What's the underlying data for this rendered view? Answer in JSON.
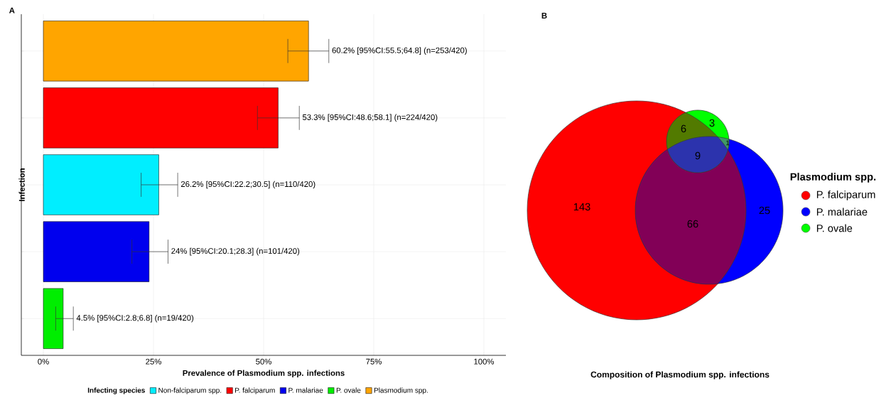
{
  "chart_data": [
    {
      "type": "bar",
      "orientation": "horizontal",
      "xlabel": "Prevalence of Plasmodium spp. infections",
      "ylabel": "Infection",
      "legend_title": "Infecting species",
      "legend": "bottom",
      "grid": true,
      "categories": [
        null,
        null,
        null,
        null,
        null
      ],
      "xlim": [
        -5,
        105
      ],
      "xticks": [
        {
          "value": 0,
          "label": "0%"
        },
        {
          "value": 25,
          "label": "25%"
        },
        {
          "value": 50,
          "label": "50%"
        },
        {
          "value": 75,
          "label": "75%"
        },
        {
          "value": 100,
          "label": "100%"
        }
      ],
      "series": [
        {
          "name": "Non-falciparum spp.",
          "color": "#00eeff",
          "values": [
            null,
            null,
            26.2,
            null,
            null
          ],
          "errors": [
            null,
            null,
            [
              22.2,
              30.5
            ],
            null,
            null
          ],
          "value_labels": [
            null,
            null,
            "26.2% [95%CI:22.2;30.5] (n=110/420)",
            null,
            null
          ]
        },
        {
          "name": "P. falciparum",
          "color": "#ff0000",
          "values": [
            null,
            53.3,
            null,
            null,
            null
          ],
          "errors": [
            null,
            [
              48.6,
              58.1
            ],
            null,
            null,
            null
          ],
          "value_labels": [
            null,
            "53.3% [95%CI:48.6;58.1] (n=224/420)",
            null,
            null,
            null
          ]
        },
        {
          "name": "P. malariae",
          "color": "#0000ee",
          "values": [
            null,
            null,
            null,
            24,
            null
          ],
          "errors": [
            null,
            null,
            null,
            [
              20.1,
              28.3
            ],
            null
          ],
          "value_labels": [
            null,
            null,
            null,
            "24% [95%CI:20.1;28.3] (n=101/420)",
            null
          ]
        },
        {
          "name": "P. ovale",
          "color": "#00ee00",
          "values": [
            null,
            null,
            null,
            null,
            4.5
          ],
          "errors": [
            null,
            null,
            null,
            null,
            [
              2.8,
              6.8
            ]
          ],
          "value_labels": [
            null,
            null,
            null,
            null,
            "4.5% [95%CI:2.8;6.8] (n=19/420)"
          ]
        },
        {
          "name": "Plasmodium spp.",
          "color": "#ffa500",
          "values": [
            60.2,
            null,
            null,
            null,
            null
          ],
          "errors": [
            [
              55.5,
              64.8
            ],
            null,
            null,
            null,
            null
          ],
          "value_labels": [
            "60.2% [95%CI:55.5;64.8] (n=253/420)",
            null,
            null,
            null,
            null
          ]
        }
      ],
      "annotations": [
        "A"
      ]
    },
    {
      "type": "other",
      "title": "Composition of Plasmodium spp. infections",
      "legend_title": "Plasmodium spp.",
      "categories": [
        "P. falciparum",
        "P. malariae",
        "P. ovale"
      ],
      "colors": [
        "#ff0000",
        "#0000ff",
        "#00ff00"
      ],
      "annotations": [
        "B",
        "143",
        "66",
        "25",
        "6",
        "3",
        "9",
        "1"
      ]
    }
  ]
}
